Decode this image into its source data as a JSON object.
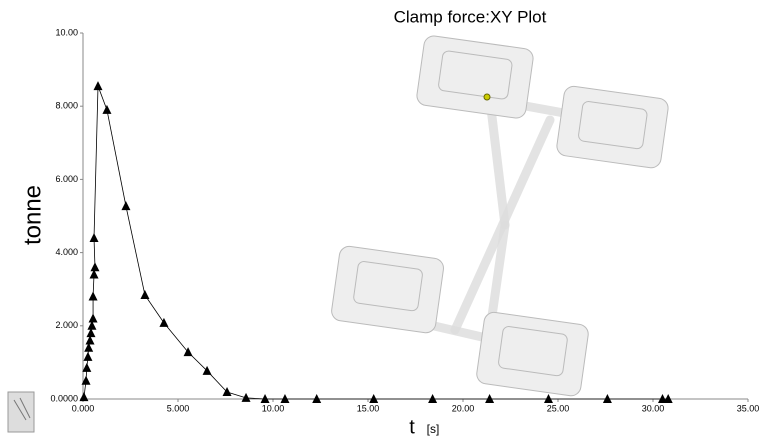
{
  "chart_data": {
    "type": "line",
    "title": "Clamp force:XY Plot",
    "y_label": "tonne",
    "x_label": "t",
    "x_unit": "[s]",
    "x": [
      0.05,
      0.16,
      0.2,
      0.26,
      0.3,
      0.37,
      0.42,
      0.47,
      0.53,
      0.53,
      0.58,
      0.63,
      0.58,
      0.79,
      1.26,
      2.26,
      3.26,
      4.26,
      5.53,
      6.53,
      7.58,
      8.58,
      9.58,
      10.63,
      12.3,
      15.3,
      18.4,
      21.4,
      24.5,
      27.6,
      30.5,
      30.8
    ],
    "values": [
      0.05,
      0.5,
      0.85,
      1.15,
      1.4,
      1.6,
      1.8,
      2.0,
      2.2,
      2.8,
      3.4,
      3.6,
      4.4,
      8.55,
      7.9,
      5.27,
      2.84,
      2.08,
      1.28,
      0.77,
      0.19,
      0.03,
      0,
      0,
      0,
      0,
      0,
      0,
      0,
      0,
      0,
      0
    ],
    "color": "#000000",
    "xlim": [
      0,
      35
    ],
    "ylim": [
      0,
      10
    ],
    "xticks": [
      {
        "value": 0,
        "label": "0.000"
      },
      {
        "value": 5,
        "label": "5.000"
      },
      {
        "value": 10,
        "label": "10.00"
      },
      {
        "value": 15,
        "label": "15.00"
      },
      {
        "value": 20,
        "label": "20.00"
      },
      {
        "value": 25,
        "label": "25.00"
      },
      {
        "value": 30,
        "label": "30.00"
      },
      {
        "value": 35,
        "label": "35.00"
      }
    ],
    "yticks": [
      {
        "value": 0,
        "label": "0.0000"
      },
      {
        "value": 2,
        "label": "2.000"
      },
      {
        "value": 4,
        "label": "4.000"
      },
      {
        "value": 6,
        "label": "6.000"
      },
      {
        "value": 8,
        "label": "8.000"
      },
      {
        "value": 10,
        "label": "10.00"
      }
    ],
    "grid": false
  }
}
